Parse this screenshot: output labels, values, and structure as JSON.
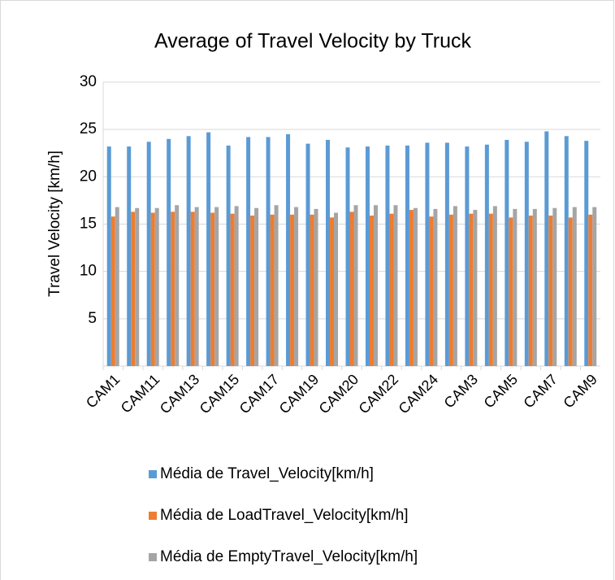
{
  "chart_data": {
    "type": "bar",
    "title": "Average of Travel Velocity by Truck",
    "y_axis_label": "Travel Velocity [km/h]",
    "categories": [
      "CAM1",
      null,
      "CAM11",
      null,
      "CAM13",
      null,
      "CAM15",
      null,
      "CAM17",
      null,
      "CAM19",
      null,
      "CAM20",
      null,
      "CAM22",
      null,
      "CAM24",
      null,
      "CAM3",
      null,
      "CAM5",
      null,
      "CAM7",
      null,
      "CAM9"
    ],
    "series": [
      {
        "name": "Média de Travel_Velocity[km/h]",
        "color": "#5b9bd5",
        "values": [
          23.2,
          23.2,
          23.7,
          24.0,
          24.3,
          24.7,
          23.3,
          24.2,
          24.2,
          24.5,
          23.5,
          23.9,
          23.1,
          23.2,
          23.3,
          23.3,
          23.6,
          23.6,
          23.2,
          23.4,
          23.9,
          23.7,
          24.8,
          24.3,
          23.8
        ]
      },
      {
        "name": "Média de LoadTravel_Velocity[km/h]",
        "color": "#ed7d31",
        "values": [
          15.8,
          16.3,
          16.2,
          16.3,
          16.3,
          16.2,
          16.1,
          15.9,
          16.0,
          16.0,
          16.0,
          15.7,
          16.3,
          15.9,
          16.1,
          16.5,
          15.8,
          16.0,
          16.1,
          16.1,
          15.7,
          15.9,
          15.9,
          15.7,
          16.0
        ]
      },
      {
        "name": "Média de EmptyTravel_Velocity[km/h]",
        "color": "#a5a5a5",
        "values": [
          16.8,
          16.7,
          16.7,
          17.0,
          16.8,
          16.8,
          16.9,
          16.7,
          17.0,
          16.8,
          16.6,
          16.2,
          17.0,
          17.0,
          17.0,
          16.7,
          16.6,
          16.9,
          16.5,
          16.9,
          16.6,
          16.6,
          16.7,
          16.8,
          16.8
        ]
      }
    ],
    "ylim": [
      0,
      30
    ],
    "yticks": [
      5,
      10,
      15,
      20,
      25,
      30
    ],
    "grid": true,
    "legend": "bottom"
  }
}
